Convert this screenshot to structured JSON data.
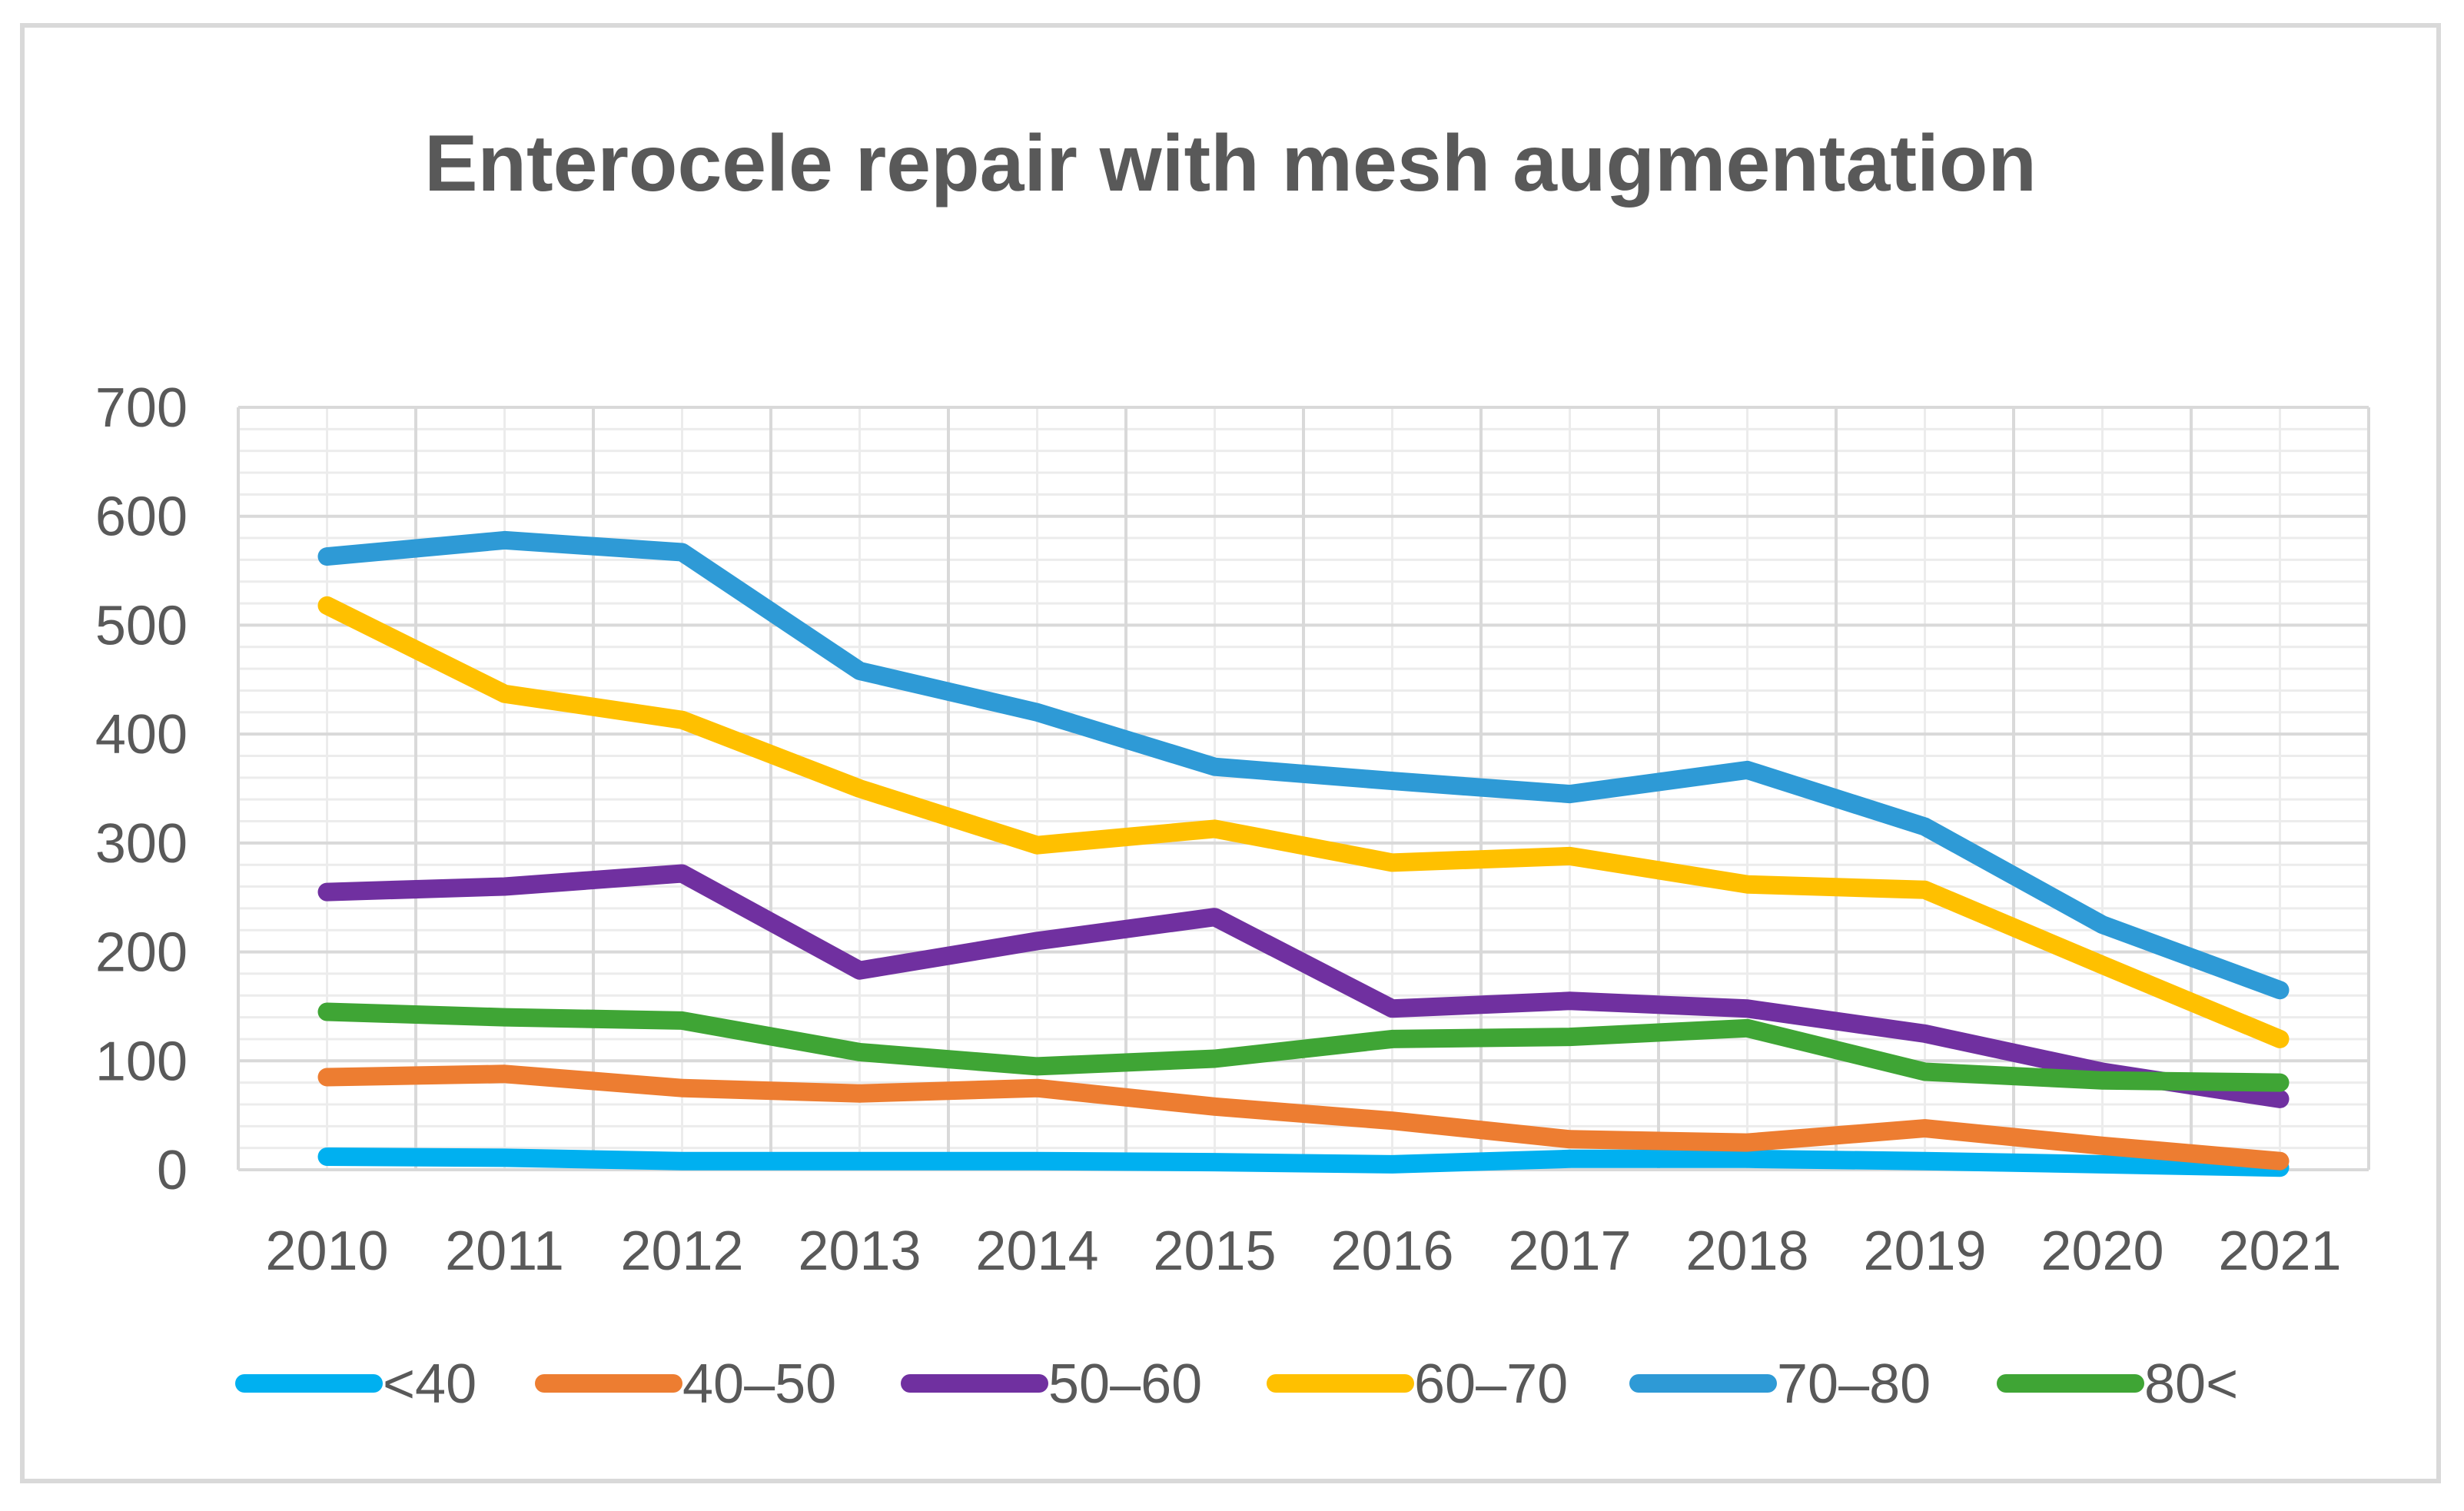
{
  "chart_data": {
    "type": "line",
    "title": "Enterocele repair with mesh augmentation",
    "xlabel": "",
    "ylabel": "",
    "ylim": [
      0,
      700
    ],
    "yticks": [
      0,
      100,
      200,
      300,
      400,
      500,
      600,
      700
    ],
    "categories": [
      "2010",
      "2011",
      "2012",
      "2013",
      "2014",
      "2015",
      "2016",
      "2017",
      "2018",
      "2019",
      "2020",
      "2021"
    ],
    "grid": true,
    "legend_position": "bottom",
    "series": [
      {
        "name": "<40",
        "color": "#00b0f0",
        "values": [
          12,
          11,
          8,
          8,
          8,
          7,
          5,
          10,
          10,
          8,
          5,
          2
        ]
      },
      {
        "name": "40–50",
        "color": "#ed7d31",
        "values": [
          85,
          88,
          75,
          70,
          75,
          58,
          45,
          28,
          25,
          38,
          22,
          8
        ]
      },
      {
        "name": "50–60",
        "color": "#7030a0",
        "values": [
          255,
          260,
          272,
          183,
          210,
          232,
          148,
          155,
          148,
          125,
          90,
          65
        ]
      },
      {
        "name": "60–70",
        "color": "#ffc000",
        "values": [
          518,
          437,
          413,
          350,
          298,
          313,
          282,
          288,
          262,
          257,
          188,
          120
        ]
      },
      {
        "name": "70–80",
        "color": "#2e9ad6",
        "values": [
          563,
          578,
          567,
          458,
          420,
          370,
          357,
          345,
          367,
          315,
          225,
          165
        ]
      },
      {
        "name": "80<",
        "color": "#3fa535",
        "values": [
          145,
          140,
          137,
          108,
          95,
          102,
          120,
          122,
          130,
          90,
          82,
          80
        ]
      }
    ]
  }
}
